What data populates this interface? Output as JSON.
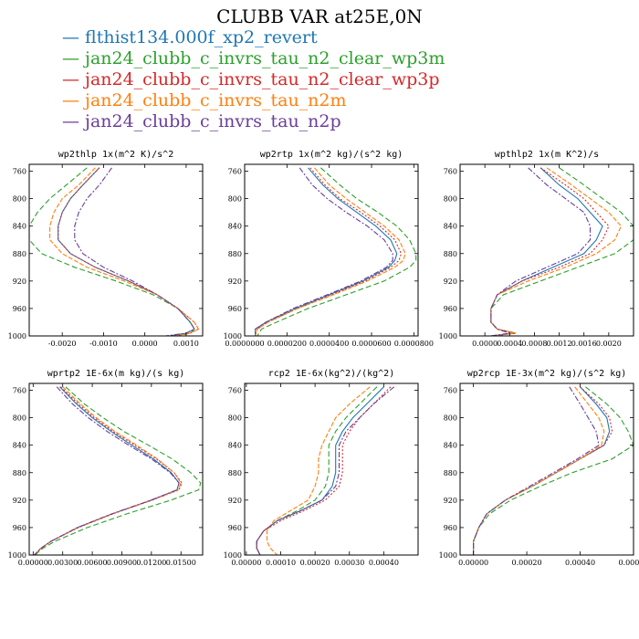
{
  "title": "CLUBB VAR at25E,0N",
  "legend": [
    {
      "label": "flthist134.000f_xp2_revert",
      "color": "#1f77b4"
    },
    {
      "label": "jan24_clubb_c_invrs_tau_n2_clear_wp3m",
      "color": "#2ca02c"
    },
    {
      "label": "jan24_clubb_c_invrs_tau_n2_clear_wp3p",
      "color": "#d62728"
    },
    {
      "label": "jan24_clubb_c_invrs_tau_n2m",
      "color": "#ff7f0e"
    },
    {
      "label": "jan24_clubb_c_invrs_tau_n2p",
      "color": "#6a3d9a"
    }
  ],
  "chart_data": [
    {
      "type": "line",
      "title": "wp2thlp  1x(m^2 K)/s^2",
      "xlim": [
        -0.0028,
        0.0014
      ],
      "ylim": [
        1000,
        750
      ],
      "xticks": [
        -0.002,
        -0.001,
        0.0,
        0.001
      ],
      "xtick_labels": [
        "-0.0020",
        "-0.0010",
        "0.0000",
        "0.0010"
      ],
      "yticks": [
        760,
        800,
        840,
        880,
        920,
        960,
        1000
      ],
      "ytick_labels": [
        "760",
        "800",
        "840",
        "880",
        "920",
        "960",
        "1000"
      ],
      "y": [
        755,
        780,
        800,
        820,
        840,
        860,
        880,
        900,
        920,
        940,
        960,
        980,
        990,
        996,
        1000
      ],
      "series": [
        {
          "name": "flthist134.000f_xp2_revert",
          "x": [
            -0.0011,
            -0.0015,
            -0.0018,
            -0.002,
            -0.0021,
            -0.0021,
            -0.0018,
            -0.0012,
            -0.0004,
            0.0003,
            0.0008,
            0.0011,
            0.0012,
            0.001,
            0.0006
          ]
        },
        {
          "name": "jan24_clubb_c_invrs_tau_n2_clear_wp3m",
          "x": [
            -0.0014,
            -0.0019,
            -0.0023,
            -0.0026,
            -0.0028,
            -0.0028,
            -0.0025,
            -0.0017,
            -0.0007,
            0.0002,
            0.0008,
            0.0011,
            0.0012,
            0.0011,
            0.0008
          ]
        },
        {
          "name": "jan24_clubb_c_invrs_tau_n2_clear_wp3p",
          "x": [
            -0.0011,
            -0.0015,
            -0.0018,
            -0.002,
            -0.0021,
            -0.0021,
            -0.0018,
            -0.0012,
            -0.0004,
            0.0003,
            0.0008,
            0.0012,
            0.0013,
            0.0011,
            0.0007
          ]
        },
        {
          "name": "jan24_clubb_c_invrs_tau_n2m",
          "x": [
            -0.0012,
            -0.0016,
            -0.002,
            -0.0022,
            -0.0023,
            -0.0023,
            -0.002,
            -0.0014,
            -0.0005,
            0.0003,
            0.0008,
            0.0012,
            0.0013,
            0.0011,
            0.0007
          ]
        },
        {
          "name": "jan24_clubb_c_invrs_tau_n2p",
          "x": [
            -0.0008,
            -0.0011,
            -0.0014,
            -0.0016,
            -0.0017,
            -0.0017,
            -0.0015,
            -0.001,
            -0.0003,
            0.0003,
            0.0008,
            0.0011,
            0.0012,
            0.001,
            0.0005
          ]
        }
      ]
    },
    {
      "type": "line",
      "title": "wp2rtp  1x(m^2 kg)/(s^2 kg)",
      "xlim": [
        0.0,
        8.2e-05
      ],
      "ylim": [
        1000,
        750
      ],
      "xticks": [
        0.0,
        2e-05,
        4e-05,
        6e-05,
        8e-05
      ],
      "xtick_labels": [
        "0.0000000",
        "0.0000200",
        "0.0000400",
        "0.0000600",
        "0.0000800"
      ],
      "yticks": [
        760,
        800,
        840,
        880,
        920,
        960,
        1000
      ],
      "ytick_labels": [
        "760",
        "800",
        "840",
        "880",
        "920",
        "960",
        "1000"
      ],
      "y": [
        755,
        780,
        800,
        820,
        840,
        860,
        880,
        890,
        900,
        920,
        940,
        960,
        980,
        990,
        1000
      ],
      "series": [
        {
          "name": "flthist134.000f_xp2_revert",
          "x": [
            3e-05,
            3.7e-05,
            4.4e-05,
            5.3e-05,
            6.2e-05,
            6.9e-05,
            7.2e-05,
            7.1e-05,
            6.8e-05,
            5.6e-05,
            4e-05,
            2.4e-05,
            1e-05,
            5e-06,
            5e-06
          ]
        },
        {
          "name": "jan24_clubb_c_invrs_tau_n2_clear_wp3m",
          "x": [
            3.6e-05,
            4.5e-05,
            5.3e-05,
            6.3e-05,
            7.2e-05,
            7.8e-05,
            8.1e-05,
            8.1e-05,
            7.8e-05,
            6.6e-05,
            4.8e-05,
            3e-05,
            1.5e-05,
            8e-06,
            6e-06
          ]
        },
        {
          "name": "jan24_clubb_c_invrs_tau_n2_clear_wp3p",
          "x": [
            3.1e-05,
            3.8e-05,
            4.5e-05,
            5.5e-05,
            6.4e-05,
            7.1e-05,
            7.4e-05,
            7.3e-05,
            6.9e-05,
            5.7e-05,
            4.1e-05,
            2.5e-05,
            1.1e-05,
            6e-06,
            5e-06
          ]
        },
        {
          "name": "jan24_clubb_c_invrs_tau_n2m",
          "x": [
            3.3e-05,
            4e-05,
            4.8e-05,
            5.7e-05,
            6.6e-05,
            7.3e-05,
            7.6e-05,
            7.5e-05,
            7.1e-05,
            5.8e-05,
            4.2e-05,
            2.5e-05,
            1.1e-05,
            6e-06,
            5e-06
          ]
        },
        {
          "name": "jan24_clubb_c_invrs_tau_n2p",
          "x": [
            2.6e-05,
            3.2e-05,
            3.9e-05,
            4.8e-05,
            5.8e-05,
            6.6e-05,
            7e-05,
            7e-05,
            6.7e-05,
            5.5e-05,
            3.9e-05,
            2.3e-05,
            1e-05,
            5e-06,
            5e-06
          ]
        }
      ]
    },
    {
      "type": "line",
      "title": "wpthlp2  1x(m K^2)/s",
      "xlim": [
        -0.0004,
        0.0024
      ],
      "ylim": [
        1000,
        750
      ],
      "xticks": [
        0.0,
        0.0004,
        0.0008,
        0.0012,
        0.0016,
        0.002
      ],
      "xtick_labels": [
        "0.0000",
        "0.0004",
        "0.0008",
        "0.0012",
        "0.0016",
        "0.0020"
      ],
      "yticks": [
        760,
        800,
        840,
        880,
        920,
        960,
        1000
      ],
      "ytick_labels": [
        "760",
        "800",
        "840",
        "880",
        "920",
        "960",
        "1000"
      ],
      "y": [
        755,
        780,
        800,
        820,
        840,
        860,
        880,
        900,
        920,
        940,
        960,
        980,
        990,
        996,
        1000
      ],
      "series": [
        {
          "name": "flthist134.000f_xp2_revert",
          "x": [
            0.0009,
            0.0012,
            0.0015,
            0.0017,
            0.0019,
            0.0018,
            0.0016,
            0.0011,
            0.0006,
            0.0002,
            0.0001,
            0.0001,
            0.0002,
            0.0005,
            0.0001
          ]
        },
        {
          "name": "jan24_clubb_c_invrs_tau_n2_clear_wp3m",
          "x": [
            0.0012,
            0.0016,
            0.0019,
            0.0022,
            0.0024,
            0.0024,
            0.0021,
            0.0015,
            0.0009,
            0.0003,
            0.0001,
            0.0001,
            0.0002,
            0.0005,
            0.0001
          ]
        },
        {
          "name": "jan24_clubb_c_invrs_tau_n2_clear_wp3p",
          "x": [
            0.0009,
            0.0013,
            0.0016,
            0.0018,
            0.002,
            0.0019,
            0.0017,
            0.0012,
            0.0006,
            0.0002,
            0.0001,
            0.0001,
            0.0002,
            0.0005,
            0.0001
          ]
        },
        {
          "name": "jan24_clubb_c_invrs_tau_n2m",
          "x": [
            0.001,
            0.0014,
            0.0017,
            0.002,
            0.0022,
            0.0021,
            0.0018,
            0.0013,
            0.0007,
            0.0002,
            0.0001,
            0.0001,
            0.0002,
            0.0005,
            0.0001
          ]
        },
        {
          "name": "jan24_clubb_c_invrs_tau_n2p",
          "x": [
            0.0007,
            0.001,
            0.0013,
            0.0016,
            0.0017,
            0.0017,
            0.0015,
            0.001,
            0.0005,
            0.0002,
            0.0001,
            0.0001,
            0.0002,
            0.0004,
            0.0001
          ]
        }
      ]
    },
    {
      "type": "line",
      "title": "wprtp2  1E-6x(m kg)/(s kg)",
      "xlim": [
        -0.0004,
        0.0172
      ],
      "ylim": [
        1000,
        750
      ],
      "xticks": [
        0.0,
        0.003,
        0.006,
        0.009,
        0.012,
        0.015
      ],
      "xtick_labels": [
        "0.00000",
        "0.00300",
        "0.00600",
        "0.00900",
        "0.01200",
        "0.01500"
      ],
      "yticks": [
        760,
        800,
        840,
        880,
        920,
        960,
        1000
      ],
      "ytick_labels": [
        "760",
        "800",
        "840",
        "880",
        "920",
        "960",
        "1000"
      ],
      "y": [
        755,
        780,
        800,
        820,
        840,
        860,
        880,
        895,
        905,
        920,
        940,
        960,
        980,
        990,
        996,
        1000
      ],
      "series": [
        {
          "name": "flthist134.000f_xp2_revert",
          "x": [
            0.0027,
            0.0044,
            0.006,
            0.0079,
            0.01,
            0.0122,
            0.014,
            0.0148,
            0.0146,
            0.012,
            0.008,
            0.0045,
            0.0018,
            0.0008,
            0.0004,
            0.0001
          ]
        },
        {
          "name": "jan24_clubb_c_invrs_tau_n2_clear_wp3m",
          "x": [
            0.0033,
            0.0052,
            0.0071,
            0.0092,
            0.0117,
            0.0141,
            0.016,
            0.017,
            0.0168,
            0.014,
            0.0095,
            0.0055,
            0.0022,
            0.001,
            0.0005,
            0.0002
          ]
        },
        {
          "name": "jan24_clubb_c_invrs_tau_n2_clear_wp3p",
          "x": [
            0.0028,
            0.0046,
            0.0062,
            0.0081,
            0.0103,
            0.0125,
            0.0143,
            0.0151,
            0.0148,
            0.0121,
            0.0081,
            0.0046,
            0.0018,
            0.0008,
            0.0004,
            0.0001
          ]
        },
        {
          "name": "jan24_clubb_c_invrs_tau_n2m",
          "x": [
            0.003,
            0.0048,
            0.0064,
            0.0083,
            0.0105,
            0.0126,
            0.0143,
            0.015,
            0.0147,
            0.012,
            0.008,
            0.0045,
            0.0018,
            0.0008,
            0.0004,
            0.0001
          ]
        },
        {
          "name": "jan24_clubb_c_invrs_tau_n2p",
          "x": [
            0.0024,
            0.004,
            0.0056,
            0.0075,
            0.0097,
            0.012,
            0.0139,
            0.0148,
            0.0146,
            0.012,
            0.008,
            0.0045,
            0.0018,
            0.0008,
            0.0004,
            0.0001
          ]
        }
      ]
    },
    {
      "type": "line",
      "title": "rcp2  1E-6x(kg^2)/(kg^2)",
      "xlim": [
        -5e-06,
        0.0005
      ],
      "ylim": [
        1000,
        750
      ],
      "xticks": [
        0.0,
        0.0001,
        0.0002,
        0.0003,
        0.0004
      ],
      "xtick_labels": [
        "0.00000",
        "0.00010",
        "0.00020",
        "0.00030",
        "0.00040"
      ],
      "yticks": [
        760,
        800,
        840,
        880,
        920,
        960,
        1000
      ],
      "ytick_labels": [
        "760",
        "800",
        "840",
        "880",
        "920",
        "960",
        "1000"
      ],
      "y": [
        755,
        780,
        800,
        820,
        840,
        860,
        880,
        900,
        920,
        935,
        950,
        965,
        980,
        990,
        1000
      ],
      "series": [
        {
          "name": "flthist134.000f_xp2_revert",
          "x": [
            0.0004,
            0.00035,
            0.00031,
            0.00028,
            0.00026,
            0.00026,
            0.00026,
            0.00025,
            0.00022,
            0.00016,
            9e-05,
            5e-05,
            3e-05,
            3e-05,
            4e-05
          ]
        },
        {
          "name": "jan24_clubb_c_invrs_tau_n2_clear_wp3m",
          "x": [
            0.00038,
            0.00033,
            0.00029,
            0.00026,
            0.00024,
            0.00024,
            0.00024,
            0.00023,
            0.0002,
            0.00015,
            9e-05,
            5e-05,
            3e-05,
            3e-05,
            4e-05
          ]
        },
        {
          "name": "jan24_clubb_c_invrs_tau_n2_clear_wp3p",
          "x": [
            0.00042,
            0.00037,
            0.00033,
            0.0003,
            0.00028,
            0.00028,
            0.00028,
            0.00027,
            0.00023,
            0.00017,
            0.0001,
            5e-05,
            3e-05,
            3e-05,
            4e-05
          ]
        },
        {
          "name": "jan24_clubb_c_invrs_tau_n2m",
          "x": [
            0.00036,
            0.0003,
            0.00026,
            0.00024,
            0.00022,
            0.00021,
            0.00021,
            0.0002,
            0.00018,
            0.00013,
            8e-05,
            6e-05,
            6e-05,
            7e-05,
            9e-05
          ]
        },
        {
          "name": "jan24_clubb_c_invrs_tau_n2p",
          "x": [
            0.00043,
            0.00037,
            0.00033,
            0.00029,
            0.00027,
            0.00027,
            0.00027,
            0.00026,
            0.00022,
            0.00016,
            9e-05,
            5e-05,
            3e-05,
            3e-05,
            4e-05
          ]
        }
      ]
    },
    {
      "type": "line",
      "title": "wp2rcp  1E-3x(m^2 kg)/(s^2 kg)",
      "xlim": [
        -5e-05,
        0.0006
      ],
      "ylim": [
        1000,
        750
      ],
      "xticks": [
        0.0,
        0.0002,
        0.0004,
        0.0006
      ],
      "xtick_labels": [
        "0.00000",
        "0.00020",
        "0.00040",
        "0.00060"
      ],
      "yticks": [
        760,
        800,
        840,
        880,
        920,
        960,
        1000
      ],
      "ytick_labels": [
        "760",
        "800",
        "840",
        "880",
        "920",
        "960",
        "1000"
      ],
      "y": [
        755,
        780,
        800,
        820,
        840,
        860,
        880,
        900,
        920,
        940,
        960,
        980,
        1000
      ],
      "series": [
        {
          "name": "flthist134.000f_xp2_revert",
          "x": [
            0.0004,
            0.00046,
            0.0005,
            0.00051,
            0.00049,
            0.0004,
            0.00031,
            0.00022,
            0.00012,
            5e-05,
            2e-05,
            0.0,
            0.0
          ]
        },
        {
          "name": "jan24_clubb_c_invrs_tau_n2_clear_wp3m",
          "x": [
            0.00042,
            0.0005,
            0.00055,
            0.00058,
            0.0006,
            0.00052,
            0.00037,
            0.00025,
            0.00014,
            6e-05,
            2e-05,
            0.0,
            0.0
          ]
        },
        {
          "name": "jan24_clubb_c_invrs_tau_n2_clear_wp3p",
          "x": [
            0.0004,
            0.00047,
            0.00051,
            0.00052,
            0.00049,
            0.0004,
            0.00031,
            0.00022,
            0.00012,
            5e-05,
            2e-05,
            0.0,
            0.0
          ]
        },
        {
          "name": "jan24_clubb_c_invrs_tau_n2m",
          "x": [
            0.00038,
            0.00043,
            0.00047,
            0.00049,
            0.00048,
            0.0004,
            0.00031,
            0.00022,
            0.00012,
            5e-05,
            2e-05,
            0.0,
            0.0
          ]
        },
        {
          "name": "jan24_clubb_c_invrs_tau_n2p",
          "x": [
            0.00036,
            0.0004,
            0.00043,
            0.00046,
            0.00047,
            0.00039,
            0.0003,
            0.00021,
            0.00012,
            5e-05,
            2e-05,
            0.0,
            0.0
          ]
        }
      ]
    }
  ]
}
